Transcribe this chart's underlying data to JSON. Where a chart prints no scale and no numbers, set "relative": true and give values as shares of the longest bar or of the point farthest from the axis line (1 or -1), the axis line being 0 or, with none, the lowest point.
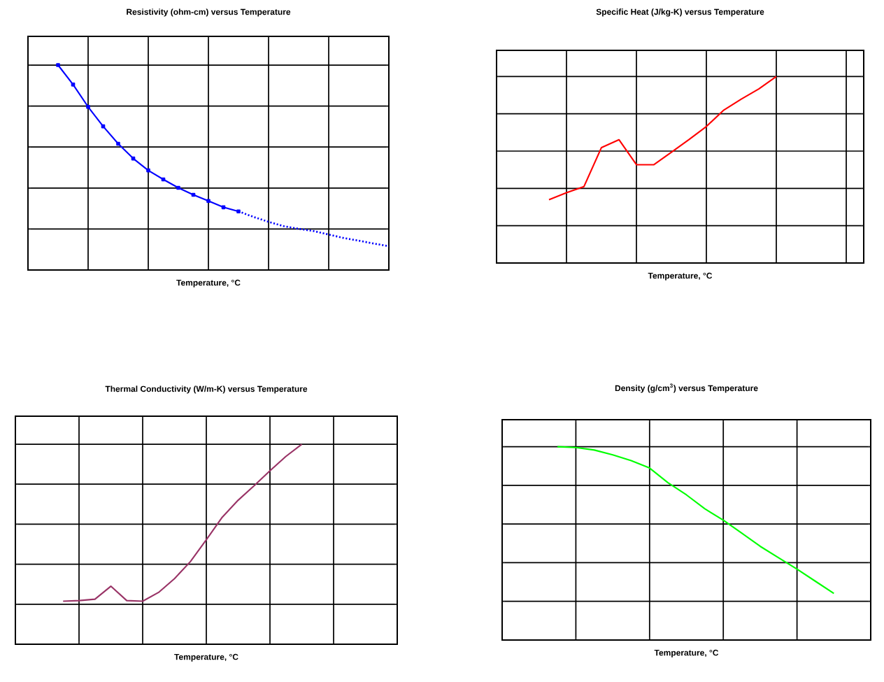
{
  "chart_data": [
    {
      "type": "line",
      "title": "Resistivity (ohm-cm) versus Temperature",
      "xlabel": "Temperature, °C",
      "relative": true,
      "grid": true,
      "tick_labels": false,
      "categories": [
        null,
        null,
        null,
        null,
        null,
        null,
        null,
        null,
        null,
        null,
        null,
        null,
        null,
        null,
        null,
        null,
        null,
        null,
        null,
        null,
        null,
        null,
        null,
        null,
        null
      ],
      "series": [
        {
          "color": "#0000ff",
          "marker": "square",
          "line_style": "solid",
          "values": [
            null,
            null,
            1.0,
            0.905,
            0.796,
            0.701,
            0.616,
            0.544,
            0.486,
            0.442,
            0.401,
            0.367,
            0.337,
            0.306,
            0.286,
            null,
            null,
            null,
            null,
            null,
            null,
            null,
            null,
            null,
            null
          ]
        },
        {
          "color": "#0000ff",
          "marker": "none",
          "line_style": "dotted",
          "values": [
            null,
            null,
            null,
            null,
            null,
            null,
            null,
            null,
            null,
            null,
            null,
            null,
            null,
            null,
            0.286,
            0.259,
            0.235,
            0.214,
            0.201,
            0.19,
            0.173,
            0.156,
            0.143,
            0.129,
            0.116
          ]
        }
      ]
    },
    {
      "type": "line",
      "title": "Specific Heat (J/kg-K) versus Temperature",
      "xlabel": "Temperature, °C",
      "relative": true,
      "grid": true,
      "tick_labels": false,
      "categories": [
        null,
        null,
        null,
        null,
        null,
        null,
        null,
        null,
        null,
        null,
        null,
        null,
        null,
        null,
        null,
        null,
        null,
        null,
        null,
        null,
        null,
        null
      ],
      "series": [
        {
          "color": "#ff0000",
          "values": [
            null,
            null,
            null,
            0.339,
            0.377,
            0.41,
            0.619,
            0.661,
            0.527,
            0.527,
            0.594,
            0.661,
            0.732,
            0.82,
            0.879,
            0.933,
            1.0,
            null,
            null,
            null,
            null,
            null
          ]
        }
      ]
    },
    {
      "type": "line",
      "title": "Thermal Conductivity (W/m-K) versus Temperature",
      "xlabel": "Temperature, °C",
      "relative": true,
      "grid": true,
      "tick_labels": false,
      "categories": [
        null,
        null,
        null,
        null,
        null,
        null,
        null,
        null,
        null,
        null,
        null,
        null,
        null,
        null,
        null,
        null,
        null,
        null,
        null,
        null,
        null,
        null,
        null,
        null,
        null
      ],
      "series": [
        {
          "color": "#993366",
          "values": [
            null,
            null,
            null,
            0.215,
            0.218,
            0.225,
            0.29,
            0.218,
            0.215,
            0.259,
            0.328,
            0.413,
            0.522,
            0.635,
            0.72,
            0.792,
            0.867,
            0.939,
            1.0,
            null,
            null,
            null,
            null,
            null,
            null
          ]
        }
      ]
    },
    {
      "type": "line",
      "title": "Density (g/cm$^{3}$) versus Temperature",
      "xlabel": "Temperature, °C",
      "relative": true,
      "grid": true,
      "tick_labels": false,
      "categories": [
        null,
        null,
        null,
        null,
        null,
        null,
        null,
        null,
        null,
        null,
        null,
        null,
        null,
        null,
        null,
        null,
        null,
        null,
        null,
        null,
        null
      ],
      "series": [
        {
          "color": "#00ff00",
          "values": [
            null,
            null,
            null,
            1.0,
            0.996,
            0.983,
            0.958,
            0.928,
            0.89,
            0.814,
            0.751,
            0.679,
            0.62,
            0.553,
            0.485,
            0.426,
            0.367,
            0.304,
            0.241,
            null,
            null
          ]
        }
      ]
    }
  ]
}
